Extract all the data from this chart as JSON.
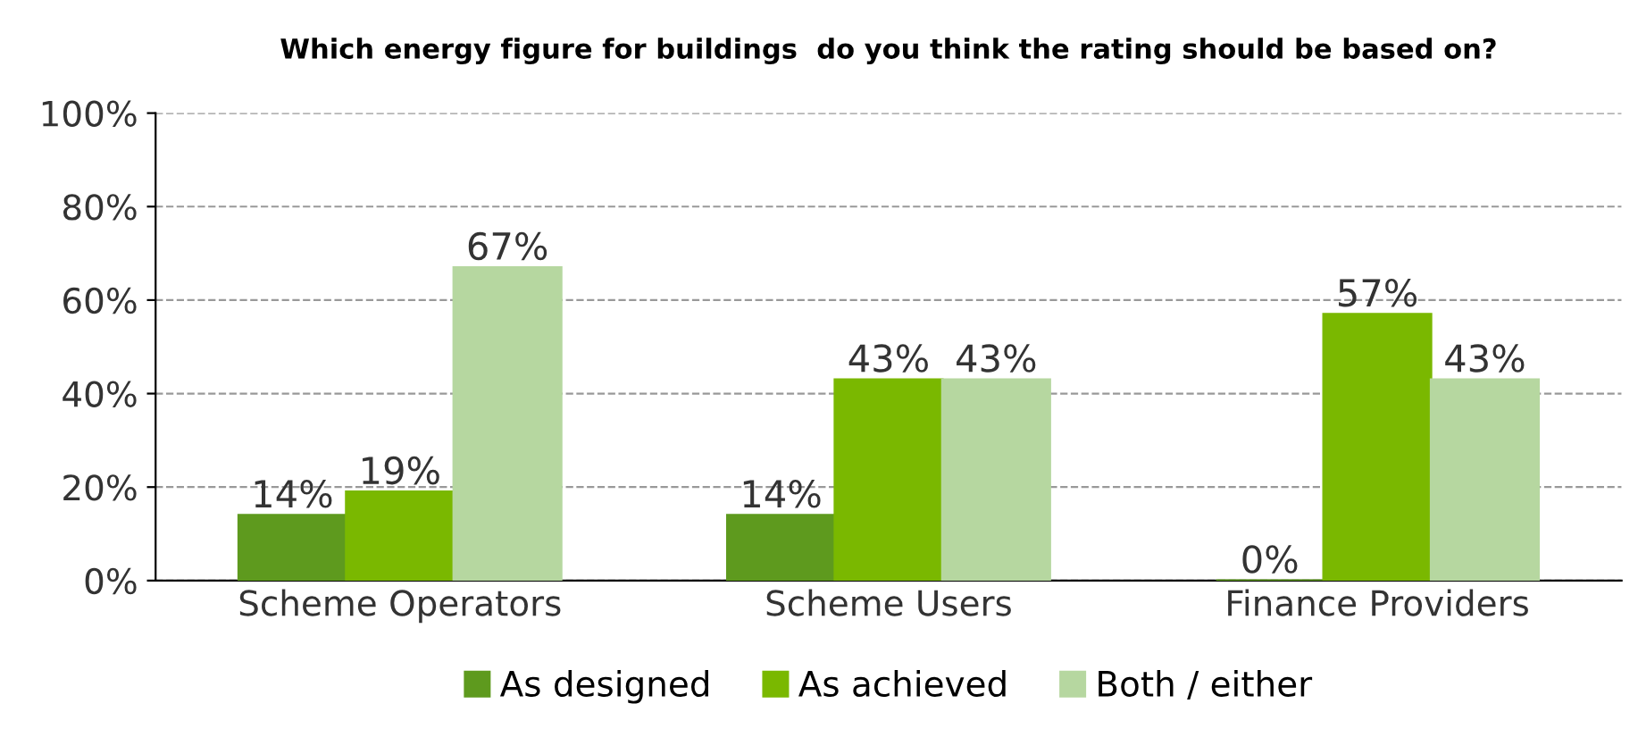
{
  "chart_data": {
    "type": "bar",
    "title": "Which energy figure for buildings  do you think the rating should be based on?",
    "categories": [
      "Scheme Operators",
      "Scheme Users",
      "Finance Providers"
    ],
    "series": [
      {
        "name": "As designed",
        "color": "#5e9a1e",
        "values": [
          14,
          14,
          0
        ],
        "value_labels": [
          "14%",
          "14%",
          "0%"
        ]
      },
      {
        "name": "As achieved",
        "color": "#7ab800",
        "values": [
          19,
          43,
          57
        ],
        "value_labels": [
          "19%",
          "43%",
          "57%"
        ]
      },
      {
        "name": "Both / either",
        "color": "#b6d7a0",
        "values": [
          67,
          43,
          43
        ],
        "value_labels": [
          "67%",
          "43%",
          "43%"
        ]
      }
    ],
    "ylim": [
      0,
      100
    ],
    "yticks": [
      {
        "value": 0,
        "label": "0%"
      },
      {
        "value": 20,
        "label": "20%"
      },
      {
        "value": 40,
        "label": "40%"
      },
      {
        "value": 60,
        "label": "60%"
      },
      {
        "value": 80,
        "label": "80%"
      },
      {
        "value": 100,
        "label": "100%"
      }
    ],
    "grid": "y",
    "legend": "bottom"
  }
}
